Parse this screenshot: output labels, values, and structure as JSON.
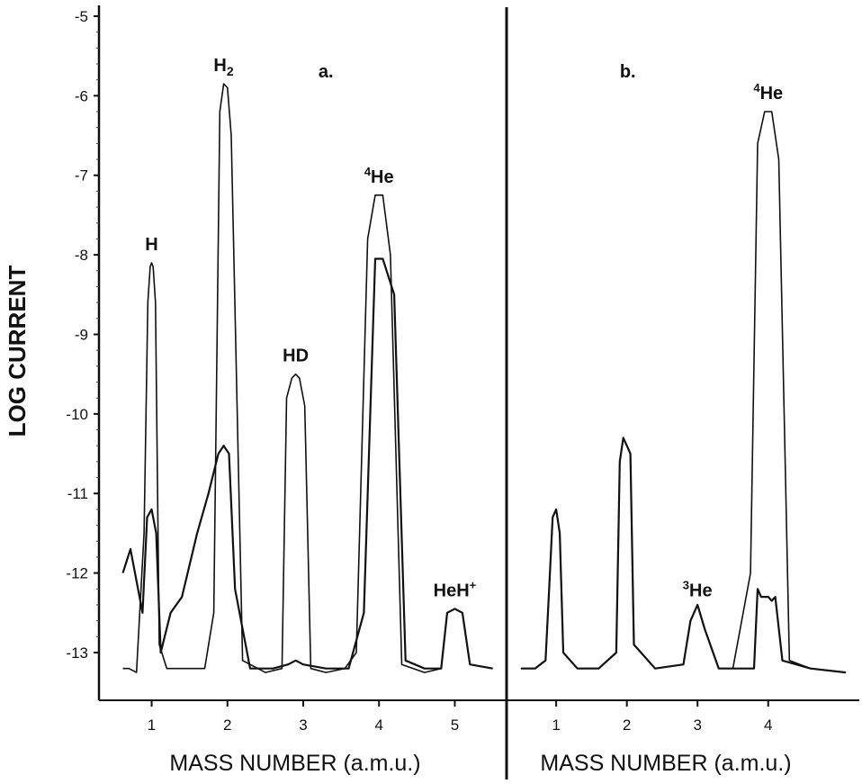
{
  "chart_data": {
    "type": "line",
    "ylabel": "LOG CURRENT",
    "yticks": [
      "-5",
      "-6",
      "-7",
      "-8",
      "-9",
      "-10",
      "-11",
      "-12",
      "-13"
    ],
    "ylim": [
      -13.6,
      -5
    ],
    "panels": [
      {
        "label": "a.",
        "xlabel": "MASS NUMBER (a.m.u.)",
        "xticks": [
          "1",
          "2",
          "3",
          "4",
          "5"
        ],
        "xlim": [
          0.4,
          5.6
        ],
        "peaks": [
          {
            "name": "H",
            "sup": "",
            "sub": "",
            "x": 1.0,
            "upper": -8.1,
            "lower": -11.3
          },
          {
            "name": "H",
            "sup": "",
            "sub": "2",
            "x": 1.95,
            "upper": -5.85,
            "lower": -10.45
          },
          {
            "name": "HD",
            "sup": "",
            "sub": "",
            "x": 2.9,
            "upper": -9.5,
            "lower": -13.2
          },
          {
            "name": "He",
            "sup": "4",
            "sub": "",
            "x": 4.0,
            "upper": -7.25,
            "lower": -8.05
          },
          {
            "name": "HeH",
            "sup": "+",
            "sub": "",
            "x": 5.0,
            "upper": -12.45,
            "lower": -12.45
          }
        ],
        "series": [
          {
            "x": [
              0.62,
              0.7,
              0.8,
              0.9,
              0.95,
              0.98,
              1.0,
              1.02,
              1.05,
              1.1,
              1.2,
              1.35,
              1.5,
              1.7,
              1.82,
              1.9,
              1.95,
              2.0,
              2.05,
              2.2,
              2.5,
              2.72,
              2.78,
              2.85,
              2.9,
              2.95,
              3.02,
              3.1,
              3.3,
              3.55,
              3.7,
              3.85,
              3.95,
              4.0,
              4.05,
              4.15,
              4.3,
              4.6,
              4.82,
              4.9,
              5.0,
              5.1,
              5.2,
              5.5
            ],
            "y": [
              -13.2,
              -13.2,
              -13.25,
              -11.5,
              -8.6,
              -8.15,
              -8.1,
              -8.15,
              -8.6,
              -12.9,
              -13.2,
              -13.2,
              -13.2,
              -13.2,
              -12.5,
              -6.2,
              -5.85,
              -5.9,
              -6.5,
              -13.1,
              -13.25,
              -13.2,
              -9.8,
              -9.55,
              -9.5,
              -9.55,
              -9.9,
              -13.2,
              -13.25,
              -13.2,
              -13.0,
              -7.8,
              -7.25,
              -7.25,
              -7.25,
              -8.0,
              -13.15,
              -13.25,
              -13.2,
              -12.5,
              -12.45,
              -12.5,
              -13.15,
              -13.2
            ]
          },
          {
            "x": [
              0.62,
              0.72,
              0.82,
              0.88,
              0.94,
              1.0,
              1.06,
              1.12,
              1.25,
              1.4,
              1.6,
              1.75,
              1.88,
              1.95,
              2.02,
              2.1,
              2.3,
              2.6,
              2.8,
              2.9,
              3.0,
              3.3,
              3.6,
              3.8,
              3.95,
              4.0,
              4.05,
              4.2,
              4.35,
              4.6,
              4.82,
              4.9,
              5.0,
              5.1,
              5.2,
              5.5
            ],
            "y": [
              -12.0,
              -11.7,
              -12.2,
              -12.5,
              -11.3,
              -11.2,
              -11.5,
              -13.0,
              -12.5,
              -12.3,
              -11.5,
              -11.0,
              -10.5,
              -10.4,
              -10.5,
              -12.2,
              -13.2,
              -13.2,
              -13.15,
              -13.1,
              -13.15,
              -13.2,
              -13.2,
              -12.5,
              -8.05,
              -8.05,
              -8.05,
              -8.5,
              -13.1,
              -13.2,
              -13.2,
              -12.5,
              -12.45,
              -12.5,
              -13.15,
              -13.2
            ]
          }
        ]
      },
      {
        "label": "b.",
        "xlabel": "MASS NUMBER (a.m.u.)",
        "xticks": [
          "1",
          "2",
          "3",
          "4"
        ],
        "xlim": [
          0.4,
          5.2
        ],
        "peaks": [
          {
            "name": "He",
            "sup": "3",
            "sub": "",
            "x": 3.0,
            "upper": -12.45,
            "lower": -12.45
          },
          {
            "name": "He",
            "sup": "4",
            "sub": "",
            "x": 4.0,
            "upper": -6.2,
            "lower": -12.3
          }
        ],
        "series": [
          {
            "x": [
              0.5,
              0.7,
              0.85,
              0.9,
              0.95,
              1.0,
              1.05,
              1.1,
              1.3,
              1.6,
              1.85,
              1.9,
              1.95,
              2.0,
              2.05,
              2.1,
              2.4,
              2.8,
              2.9,
              3.0,
              3.1,
              3.3,
              3.5,
              3.75,
              3.85,
              3.95,
              4.0,
              4.05,
              4.15,
              4.3,
              4.6,
              5.1
            ],
            "y": [
              -13.2,
              -13.2,
              -13.1,
              -12.2,
              -11.3,
              -11.2,
              -11.5,
              -13.0,
              -13.2,
              -13.2,
              -13.0,
              -10.6,
              -10.3,
              -10.4,
              -10.5,
              -12.9,
              -13.2,
              -13.15,
              -12.6,
              -12.4,
              -12.7,
              -13.2,
              -13.2,
              -12.0,
              -6.6,
              -6.2,
              -6.2,
              -6.2,
              -6.8,
              -13.1,
              -13.2,
              -13.25
            ]
          },
          {
            "x": [
              0.5,
              0.7,
              0.85,
              0.9,
              0.95,
              1.0,
              1.05,
              1.1,
              1.3,
              1.6,
              1.85,
              1.9,
              1.95,
              2.0,
              2.05,
              2.1,
              2.4,
              2.8,
              2.9,
              3.0,
              3.1,
              3.3,
              3.6,
              3.8,
              3.85,
              3.9,
              4.0,
              4.05,
              4.1,
              4.2,
              4.6,
              5.1
            ],
            "y": [
              -13.2,
              -13.2,
              -13.1,
              -12.2,
              -11.3,
              -11.2,
              -11.5,
              -13.0,
              -13.2,
              -13.2,
              -13.0,
              -10.6,
              -10.3,
              -10.4,
              -10.5,
              -12.9,
              -13.2,
              -13.15,
              -12.6,
              -12.4,
              -12.7,
              -13.2,
              -13.2,
              -13.2,
              -12.2,
              -12.3,
              -12.3,
              -12.35,
              -12.3,
              -13.1,
              -13.2,
              -13.25
            ]
          }
        ]
      }
    ]
  }
}
